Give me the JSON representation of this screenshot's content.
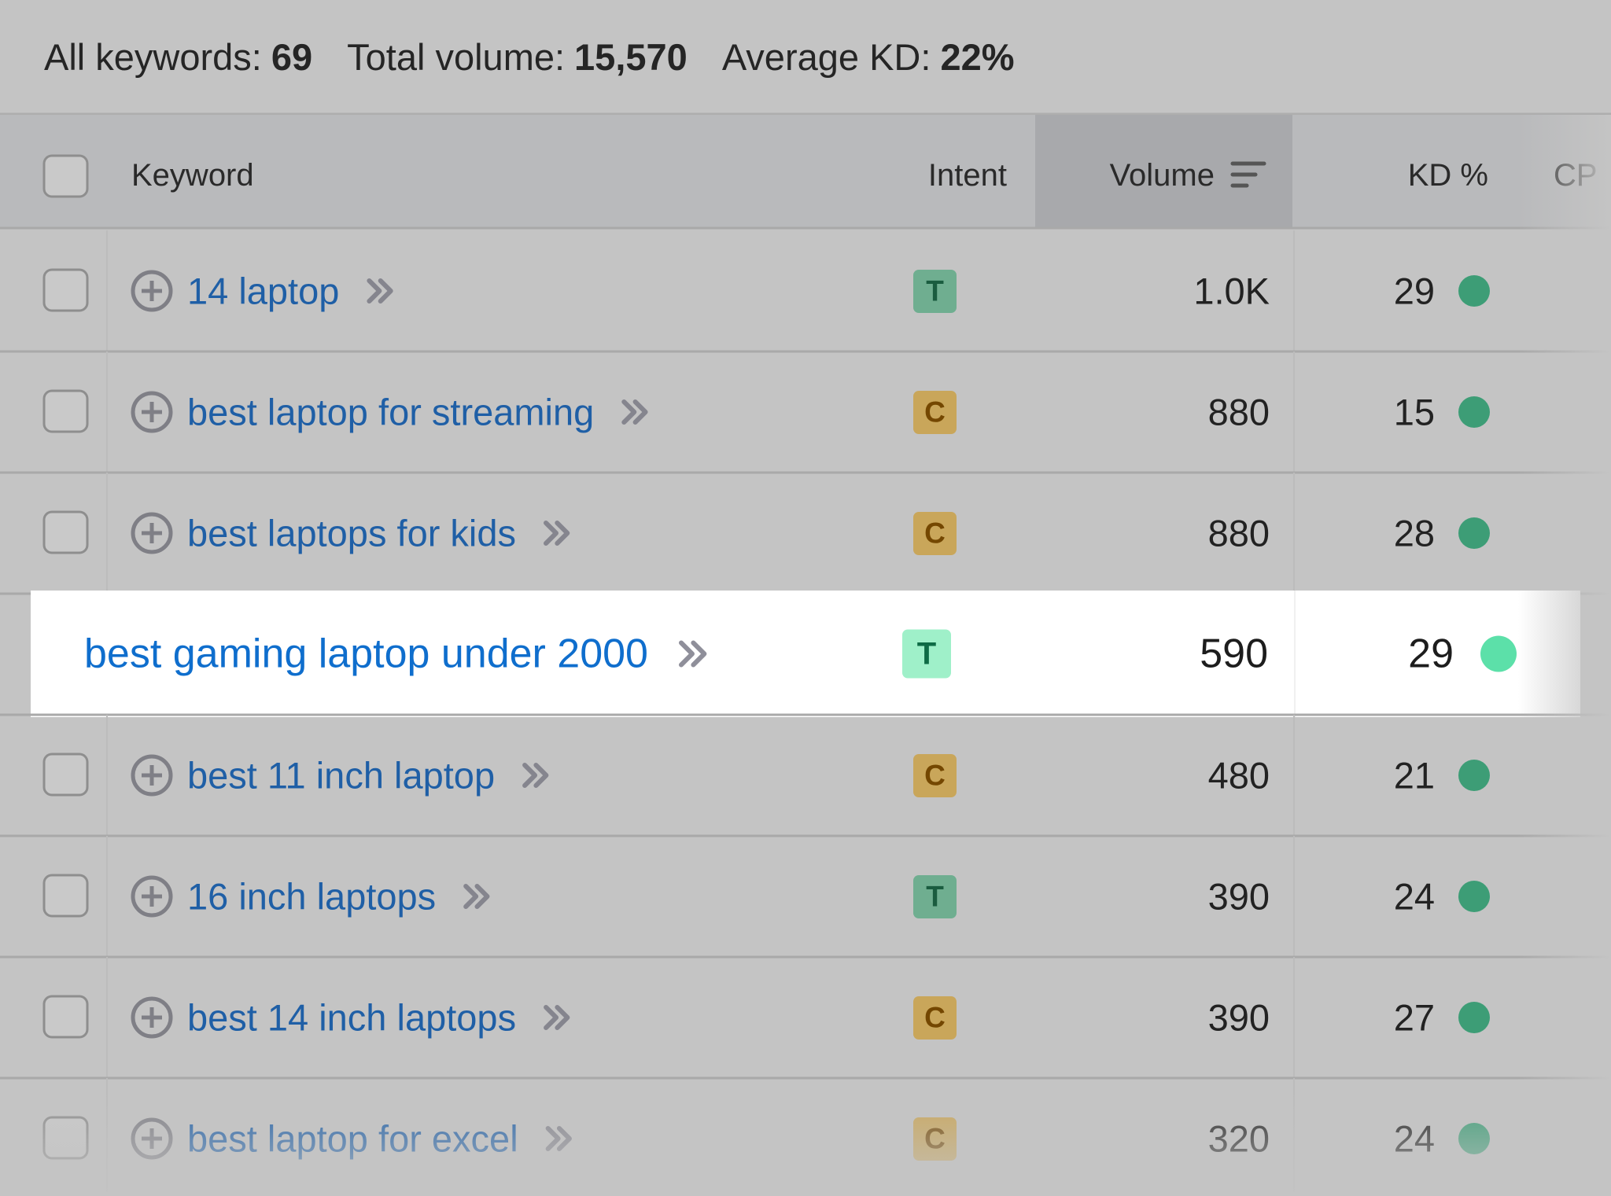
{
  "summary": [
    {
      "label": "All keywords:",
      "value": "69"
    },
    {
      "label": "Total volume:",
      "value": "15,570"
    },
    {
      "label": "Average KD:",
      "value": "22%"
    }
  ],
  "table": {
    "columns": [
      "Keyword",
      "Intent",
      "Volume",
      "KD %",
      "CP"
    ],
    "rows": [
      {
        "keyword": "14 laptop",
        "intent": "T",
        "volume": "1.0K",
        "kd": "29"
      },
      {
        "keyword": "best laptop for streaming",
        "intent": "C",
        "volume": "880",
        "kd": "15"
      },
      {
        "keyword": "best laptops for kids",
        "intent": "C",
        "volume": "880",
        "kd": "28"
      },
      {
        "keyword": "best gaming laptop under 2000",
        "intent": "T",
        "volume": "590",
        "kd": "29"
      },
      {
        "keyword": "best 11 inch laptop",
        "intent": "C",
        "volume": "480",
        "kd": "21"
      },
      {
        "keyword": "16 inch laptops",
        "intent": "T",
        "volume": "390",
        "kd": "24"
      },
      {
        "keyword": "best 14 inch laptops",
        "intent": "C",
        "volume": "390",
        "kd": "27"
      },
      {
        "keyword": "best laptop for excel",
        "intent": "C",
        "volume": "320",
        "kd": "24"
      }
    ],
    "highlighted_row": 3
  }
}
